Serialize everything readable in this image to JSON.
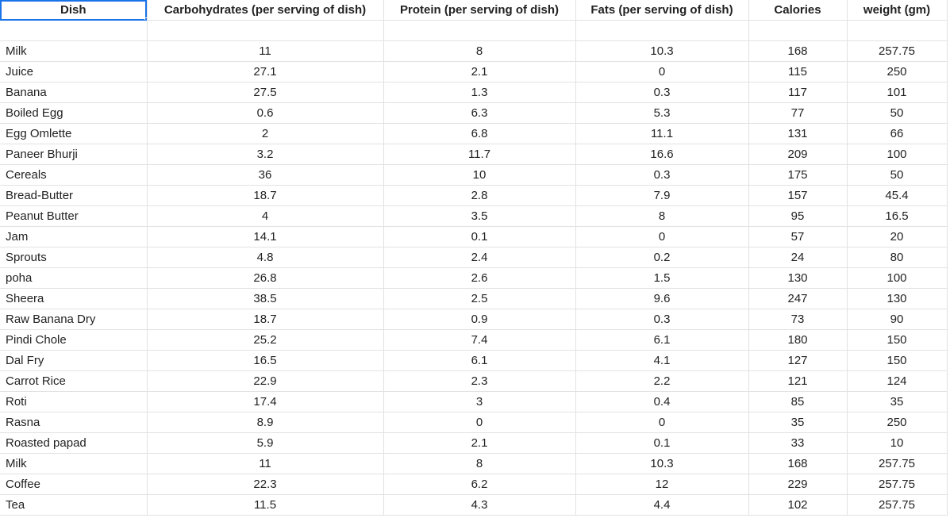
{
  "headers": [
    "Dish",
    "Carbohydrates (per serving of dish)",
    "Protein (per serving of dish)",
    "Fats (per serving of dish)",
    "Calories",
    "weight (gm)"
  ],
  "rows": [
    [
      "Milk",
      "11",
      "8",
      "10.3",
      "168",
      "257.75"
    ],
    [
      "Juice",
      "27.1",
      "2.1",
      "0",
      "115",
      "250"
    ],
    [
      "Banana",
      "27.5",
      "1.3",
      "0.3",
      "117",
      "101"
    ],
    [
      "Boiled Egg",
      "0.6",
      "6.3",
      "5.3",
      "77",
      "50"
    ],
    [
      "Egg Omlette",
      "2",
      "6.8",
      "11.1",
      "131",
      "66"
    ],
    [
      "Paneer Bhurji",
      "3.2",
      "11.7",
      "16.6",
      "209",
      "100"
    ],
    [
      "Cereals",
      "36",
      "10",
      "0.3",
      "175",
      "50"
    ],
    [
      "Bread-Butter",
      "18.7",
      "2.8",
      "7.9",
      "157",
      "45.4"
    ],
    [
      "Peanut Butter",
      "4",
      "3.5",
      "8",
      "95",
      "16.5"
    ],
    [
      "Jam",
      "14.1",
      "0.1",
      "0",
      "57",
      "20"
    ],
    [
      "Sprouts",
      "4.8",
      "2.4",
      "0.2",
      "24",
      "80"
    ],
    [
      "poha",
      "26.8",
      "2.6",
      "1.5",
      "130",
      "100"
    ],
    [
      "Sheera",
      "38.5",
      "2.5",
      "9.6",
      "247",
      "130"
    ],
    [
      "Raw Banana Dry",
      "18.7",
      "0.9",
      "0.3",
      "73",
      "90"
    ],
    [
      "Pindi Chole",
      "25.2",
      "7.4",
      "6.1",
      "180",
      "150"
    ],
    [
      "Dal Fry",
      "16.5",
      "6.1",
      "4.1",
      "127",
      "150"
    ],
    [
      "Carrot Rice",
      "22.9",
      "2.3",
      "2.2",
      "121",
      "124"
    ],
    [
      "Roti",
      "17.4",
      "3",
      "0.4",
      "85",
      "35"
    ],
    [
      "Rasna",
      "8.9",
      "0",
      "0",
      "35",
      "250"
    ],
    [
      "Roasted papad",
      "5.9",
      "2.1",
      "0.1",
      "33",
      "10"
    ],
    [
      "Milk",
      "11",
      "8",
      "10.3",
      "168",
      "257.75"
    ],
    [
      "Coffee",
      "22.3",
      "6.2",
      "12",
      "229",
      "257.75"
    ],
    [
      "Tea",
      "11.5",
      "4.3",
      "4.4",
      "102",
      "257.75"
    ]
  ]
}
